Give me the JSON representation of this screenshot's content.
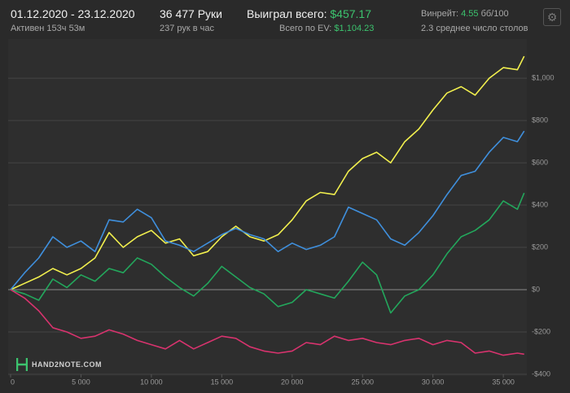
{
  "header": {
    "date_range": "01.12.2020 - 23.12.2020",
    "active": "Активен 153ч 53м",
    "hands": "36 477 Руки",
    "hands_per_hour": "237 рук в час",
    "won_label": "Выиграл всего:",
    "won_value": "$457.17",
    "ev_label": "Всего по EV:",
    "ev_value": "$1,104.23",
    "winrate_label": "Винрейт:",
    "winrate_value": "4.55",
    "winrate_unit": "бб/100",
    "tables": "2.3 среднее число столов"
  },
  "watermark": "HAND2NOTE.COM",
  "chart_data": {
    "type": "line",
    "x": [
      0,
      1000,
      2000,
      3000,
      4000,
      5000,
      6000,
      7000,
      8000,
      9000,
      10000,
      11000,
      12000,
      13000,
      14000,
      15000,
      16000,
      17000,
      18000,
      19000,
      20000,
      21000,
      22000,
      23000,
      24000,
      25000,
      26000,
      27000,
      28000,
      29000,
      30000,
      31000,
      32000,
      33000,
      34000,
      35000,
      36000,
      36477
    ],
    "series": [
      {
        "color": "#f2f04e",
        "values": [
          0,
          30,
          60,
          100,
          70,
          100,
          150,
          270,
          200,
          250,
          280,
          220,
          240,
          160,
          180,
          250,
          300,
          250,
          230,
          260,
          330,
          420,
          460,
          450,
          560,
          620,
          650,
          600,
          700,
          760,
          850,
          930,
          960,
          920,
          1000,
          1050,
          1040,
          1104
        ]
      },
      {
        "color": "#3f8fdc",
        "values": [
          0,
          80,
          150,
          250,
          200,
          230,
          180,
          330,
          320,
          380,
          340,
          230,
          210,
          180,
          220,
          260,
          290,
          260,
          240,
          180,
          220,
          190,
          210,
          250,
          390,
          360,
          330,
          240,
          210,
          270,
          350,
          450,
          540,
          560,
          650,
          720,
          700,
          750
        ]
      },
      {
        "color": "#23a75c",
        "values": [
          0,
          -20,
          -50,
          50,
          10,
          70,
          40,
          100,
          80,
          150,
          120,
          60,
          10,
          -30,
          30,
          110,
          60,
          10,
          -20,
          -80,
          -60,
          0,
          -20,
          -40,
          40,
          130,
          70,
          -110,
          -30,
          0,
          70,
          170,
          250,
          280,
          330,
          420,
          380,
          457
        ]
      },
      {
        "color": "#d8336e",
        "values": [
          0,
          -40,
          -100,
          -180,
          -200,
          -230,
          -220,
          -190,
          -210,
          -240,
          -260,
          -280,
          -240,
          -280,
          -250,
          -220,
          -230,
          -270,
          -290,
          -300,
          -290,
          -250,
          -260,
          -220,
          -240,
          -230,
          -250,
          -260,
          -240,
          -230,
          -260,
          -240,
          -250,
          -300,
          -290,
          -310,
          -300,
          -305
        ]
      }
    ],
    "xlim": [
      0,
      36670
    ],
    "xticks": [
      0,
      {
        "value": 5000,
        "label": "5 000"
      },
      {
        "value": 10000,
        "label": "10 000"
      },
      {
        "value": 15000,
        "label": "15 000"
      },
      {
        "value": 20000,
        "label": "20 000"
      },
      {
        "value": 25000,
        "label": "25 000"
      },
      {
        "value": 30000,
        "label": "30 000"
      },
      {
        "value": 35000,
        "label": "35 000"
      }
    ],
    "ylim": [
      -400,
      1185
    ],
    "yticks": [
      {
        "value": -400,
        "label": "-$400"
      },
      {
        "value": -200,
        "label": "-$200"
      },
      {
        "value": 0,
        "label": "$0"
      },
      {
        "value": 200,
        "label": "$200"
      },
      {
        "value": 400,
        "label": "$400"
      },
      {
        "value": 600,
        "label": "$600"
      },
      {
        "value": 800,
        "label": "$800"
      },
      {
        "value": 1000,
        "label": "$1,000"
      }
    ],
    "grid": true
  }
}
